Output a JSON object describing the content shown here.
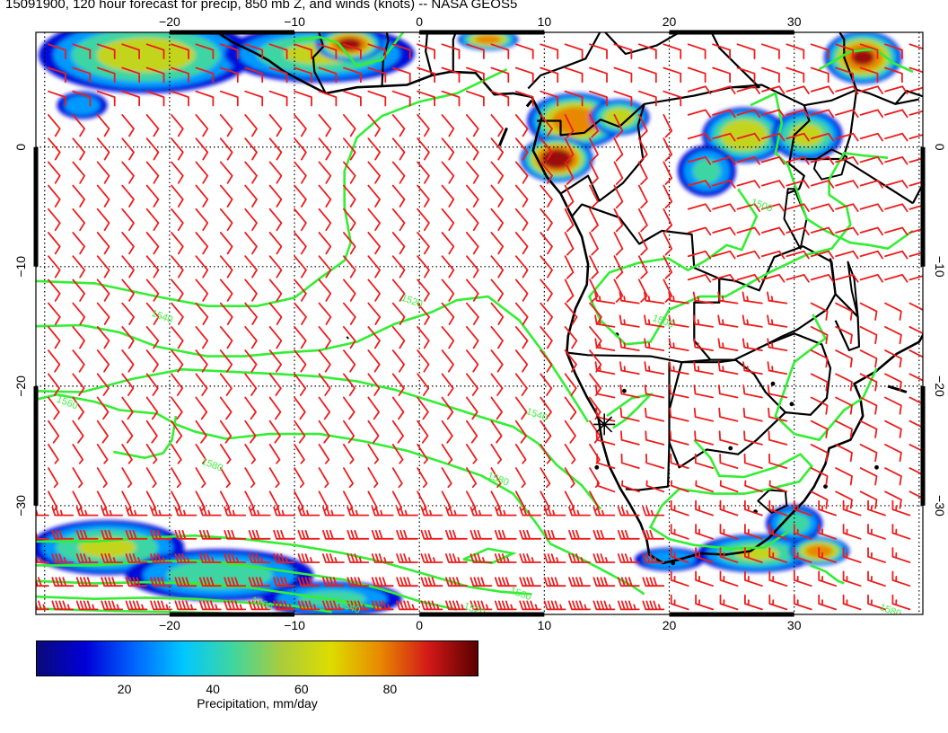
{
  "title": "15091900, 120 hour forecast for precip, 850 mb Z, and winds (knots) -- NASA GEOS5",
  "map": {
    "lon_range": [
      -30.7,
      40.3
    ],
    "lat_range": [
      -39.1,
      9.6
    ],
    "lon_ticks": [
      -20,
      -10,
      0,
      10,
      20,
      30
    ],
    "lat_ticks": [
      0,
      -10,
      -20,
      -30
    ],
    "lon_tick_labels": [
      "−20",
      "−10",
      "0",
      "10",
      "20",
      "30"
    ],
    "lat_tick_labels": [
      "0",
      "−10",
      "−20",
      "−30"
    ],
    "grid": "dotted",
    "marker": {
      "lon": 14.8,
      "lat": -23.2,
      "symbol": "star"
    }
  },
  "contours": {
    "field": "850 mb Z",
    "color": "#33ee33",
    "labels": [
      {
        "text": "1500",
        "lon": 26.5,
        "lat": -4.8
      },
      {
        "text": "1500",
        "lon": 18.6,
        "lat": -14.5
      },
      {
        "text": "1520",
        "lon": -1.5,
        "lat": -12.8
      },
      {
        "text": "1540",
        "lon": -21.5,
        "lat": -14.1
      },
      {
        "text": "1540",
        "lon": 8.5,
        "lat": -22.3
      },
      {
        "text": "1560",
        "lon": -29.1,
        "lat": -21.3
      },
      {
        "text": "1580",
        "lon": -17.5,
        "lat": -26.5
      },
      {
        "text": "1580",
        "lon": 5.4,
        "lat": -27.7
      },
      {
        "text": "1580",
        "lon": 7.2,
        "lat": -37.3
      },
      {
        "text": "1560",
        "lon": -13.5,
        "lat": -38.1
      },
      {
        "text": "1540",
        "lon": -6.5,
        "lat": -38.4
      },
      {
        "text": "1520",
        "lon": 3.5,
        "lat": -38.6
      },
      {
        "text": "1580",
        "lon": 36.8,
        "lat": -38.7
      }
    ]
  },
  "precip_blobs": [
    {
      "lon": -21.9,
      "lat": 7.7,
      "rx": 9,
      "ry": 3.2,
      "peak": 60
    },
    {
      "lon": -8,
      "lat": 7.8,
      "rx": 8,
      "ry": 2.4,
      "peak": 55
    },
    {
      "lon": -5.6,
      "lat": 8.6,
      "rx": 2.8,
      "ry": 1.4,
      "peak": 92
    },
    {
      "lon": 5.5,
      "lat": 9,
      "rx": 2.5,
      "ry": 0.9,
      "peak": 78
    },
    {
      "lon": 12.5,
      "lat": 2.2,
      "rx": 4,
      "ry": 2.3,
      "peak": 85
    },
    {
      "lon": 11,
      "lat": -1,
      "rx": 3,
      "ry": 1.9,
      "peak": 98
    },
    {
      "lon": 16,
      "lat": 2.5,
      "rx": 2.5,
      "ry": 1.5,
      "peak": 65
    },
    {
      "lon": 26,
      "lat": 1,
      "rx": 3.5,
      "ry": 2.3,
      "peak": 70
    },
    {
      "lon": 23,
      "lat": -2,
      "rx": 2.5,
      "ry": 2.2,
      "peak": 40
    },
    {
      "lon": 31,
      "lat": 1,
      "rx": 3,
      "ry": 2.1,
      "peak": 60
    },
    {
      "lon": 35.5,
      "lat": 7.5,
      "rx": 3.2,
      "ry": 2.2,
      "peak": 88
    },
    {
      "lon": -27,
      "lat": 3.5,
      "rx": 2.2,
      "ry": 1.2,
      "peak": 30
    },
    {
      "lon": -25,
      "lat": -33.5,
      "rx": 6.5,
      "ry": 2.3,
      "peak": 55
    },
    {
      "lon": -16,
      "lat": -35.8,
      "rx": 8,
      "ry": 2.2,
      "peak": 45
    },
    {
      "lon": -7,
      "lat": -37.8,
      "rx": 6,
      "ry": 1.5,
      "peak": 40
    },
    {
      "lon": 30,
      "lat": -31.5,
      "rx": 2.4,
      "ry": 1.6,
      "peak": 45
    },
    {
      "lon": 27,
      "lat": -34,
      "rx": 5,
      "ry": 1.6,
      "peak": 55
    },
    {
      "lon": 32,
      "lat": -33.8,
      "rx": 2.5,
      "ry": 1.2,
      "peak": 80
    },
    {
      "lon": 20,
      "lat": -34.5,
      "rx": 3,
      "ry": 1,
      "peak": 35
    }
  ],
  "colorbar": {
    "ticks": [
      20,
      40,
      60,
      80
    ],
    "range": [
      0,
      100
    ],
    "title": "Precipitation, mm/day",
    "stops": [
      "#0a0a7a",
      "#0000d8",
      "#0066ff",
      "#00c8ff",
      "#3fd6a0",
      "#aacc3c",
      "#dddd00",
      "#e88a00",
      "#d21818",
      "#5a0000"
    ]
  },
  "colors": {
    "wind_barb": "#ee1c1c",
    "coastline": "#000000",
    "contour": "#33ee33",
    "grid": "#000000"
  }
}
